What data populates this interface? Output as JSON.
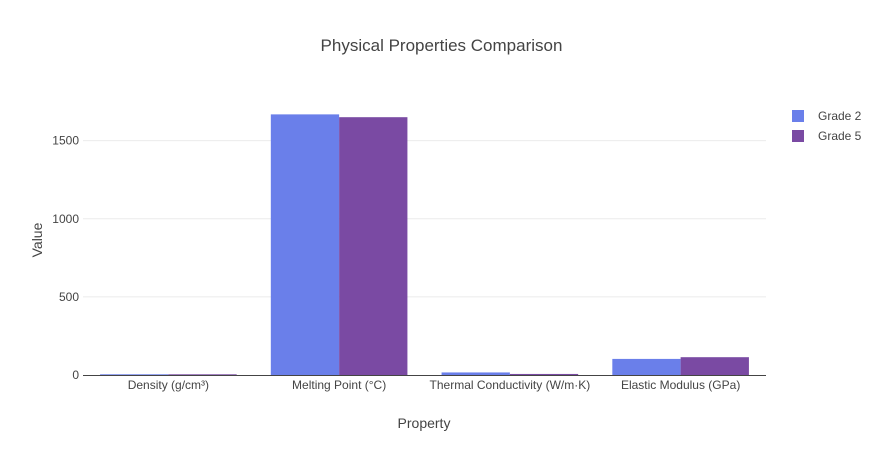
{
  "chart_data": {
    "type": "bar",
    "title": "Physical Properties Comparison",
    "xlabel": "Property",
    "ylabel": "Value",
    "categories": [
      "Density (g/cm³)",
      "Melting Point (°C)",
      "Thermal Conductivity (W/m·K)",
      "Elastic Modulus (GPa)"
    ],
    "series": [
      {
        "name": "Grade 2",
        "color": "#6a7fea",
        "values": [
          4.5,
          1668,
          16.4,
          103
        ]
      },
      {
        "name": "Grade 5",
        "color": "#7a4aa3",
        "values": [
          4.43,
          1650,
          6.7,
          114
        ]
      }
    ],
    "ylim": [
      0,
      1760
    ],
    "yticks": [
      0,
      500,
      1000,
      1500
    ],
    "grid": true,
    "legend": "top-right"
  }
}
